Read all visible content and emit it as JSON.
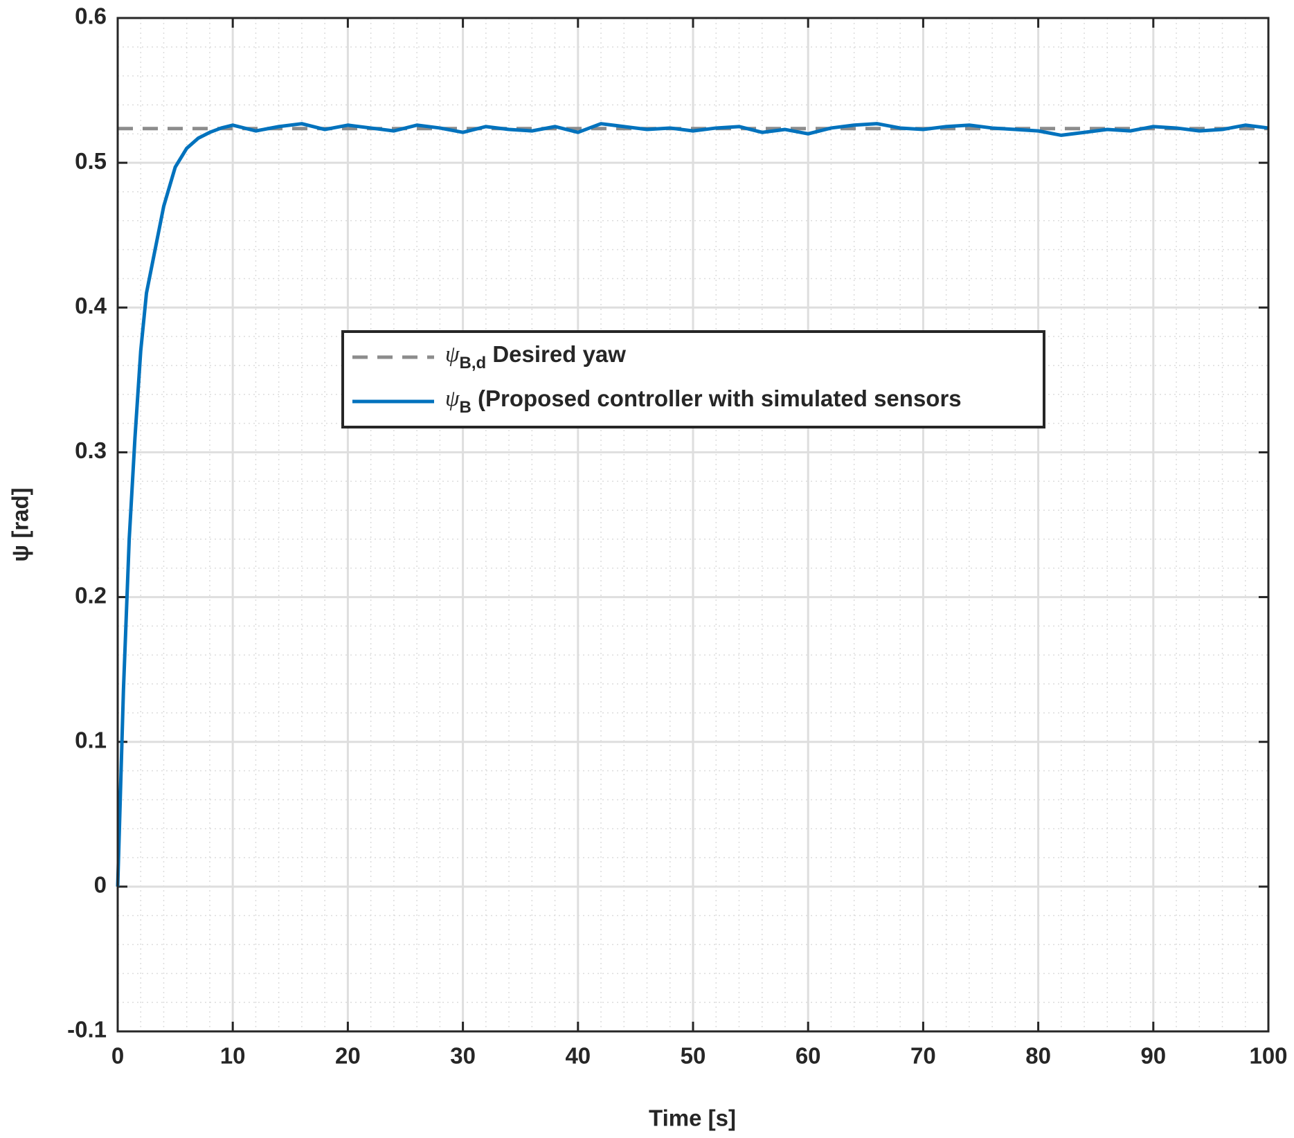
{
  "chart_data": {
    "type": "line",
    "xlabel": "Time [s]",
    "ylabel": "ψ [rad]",
    "xlim": [
      0,
      100
    ],
    "xticks": [
      0,
      10,
      20,
      30,
      40,
      50,
      60,
      70,
      80,
      90,
      100
    ],
    "ylim": [
      -0.1,
      0.6
    ],
    "yticks": [
      -0.1,
      0,
      0.1,
      0.2,
      0.3,
      0.4,
      0.5,
      0.6
    ],
    "grid": true,
    "minor_grid": true,
    "legend_position": "center",
    "series": [
      {
        "name": "ψB,d Desired yaw",
        "color": "#8c8c8c",
        "dashed": true,
        "x": [
          0,
          100
        ],
        "values": [
          0.5236,
          0.5236
        ]
      },
      {
        "name": "ψB (Proposed controller with simulated sensors",
        "color": "#0072bd",
        "dashed": false,
        "x": [
          0,
          0.5,
          1,
          1.5,
          2,
          2.5,
          3,
          4,
          5,
          6,
          7,
          8,
          9,
          10,
          12,
          14,
          16,
          18,
          20,
          22,
          24,
          26,
          28,
          30,
          32,
          34,
          36,
          38,
          40,
          42,
          44,
          46,
          48,
          50,
          52,
          54,
          56,
          58,
          60,
          62,
          64,
          66,
          68,
          70,
          72,
          74,
          76,
          78,
          80,
          82,
          84,
          86,
          88,
          90,
          92,
          94,
          96,
          98,
          100
        ],
        "values": [
          0,
          0.136,
          0.24,
          0.31,
          0.37,
          0.41,
          0.43,
          0.47,
          0.497,
          0.51,
          0.517,
          0.521,
          0.524,
          0.526,
          0.522,
          0.525,
          0.527,
          0.523,
          0.526,
          0.524,
          0.522,
          0.526,
          0.524,
          0.521,
          0.525,
          0.523,
          0.522,
          0.525,
          0.521,
          0.527,
          0.525,
          0.523,
          0.524,
          0.522,
          0.524,
          0.525,
          0.521,
          0.523,
          0.52,
          0.524,
          0.526,
          0.527,
          0.524,
          0.523,
          0.525,
          0.526,
          0.524,
          0.523,
          0.522,
          0.519,
          0.521,
          0.523,
          0.522,
          0.525,
          0.524,
          0.522,
          0.523,
          0.526,
          0.524
        ]
      }
    ]
  }
}
